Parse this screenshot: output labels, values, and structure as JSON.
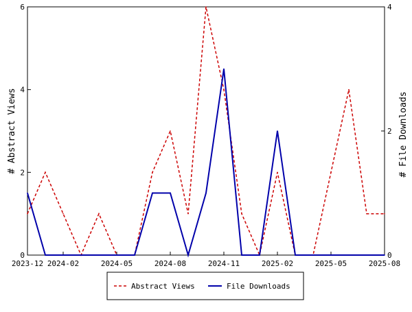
{
  "chart_data": {
    "type": "line",
    "title": "",
    "y_left": {
      "label": "# Abstract Views",
      "ylim": [
        0,
        6
      ],
      "ticks": [
        "0",
        "2",
        "4",
        "6"
      ]
    },
    "y_right": {
      "label": "# File Downloads",
      "ylim": [
        0,
        4
      ],
      "ticks": [
        "0",
        "2",
        "4"
      ]
    },
    "x": {
      "tick_labels": [
        "2023-12",
        "2024-02",
        "2024-05",
        "2024-08",
        "2024-11",
        "2025-02",
        "2025-05",
        "2025-08"
      ],
      "range": [
        "2023-12",
        "2025-08"
      ]
    },
    "months": [
      "2023-12",
      "2024-01",
      "2024-02",
      "2024-03",
      "2024-04",
      "2024-05",
      "2024-06",
      "2024-07",
      "2024-08",
      "2024-09",
      "2024-10",
      "2024-11",
      "2024-12",
      "2025-01",
      "2025-02",
      "2025-03",
      "2025-04",
      "2025-05",
      "2025-06",
      "2025-07",
      "2025-08"
    ],
    "series": [
      {
        "name": "Abstract Views",
        "axis": "left",
        "color": "#cc0000",
        "style": "dashed",
        "values": [
          1,
          2,
          1,
          0,
          1,
          0,
          0,
          2,
          3,
          1,
          6,
          4,
          1,
          0,
          2,
          0,
          0,
          2,
          4,
          1,
          1
        ]
      },
      {
        "name": "File Downloads",
        "axis": "right",
        "color": "#0000aa",
        "style": "solid",
        "values": [
          1,
          0,
          0,
          0,
          0,
          0,
          0,
          1,
          1,
          0,
          1,
          3,
          0,
          0,
          2,
          0,
          0,
          0,
          0,
          0,
          0
        ]
      }
    ],
    "grid": false,
    "legend_position": "bottom-center"
  }
}
